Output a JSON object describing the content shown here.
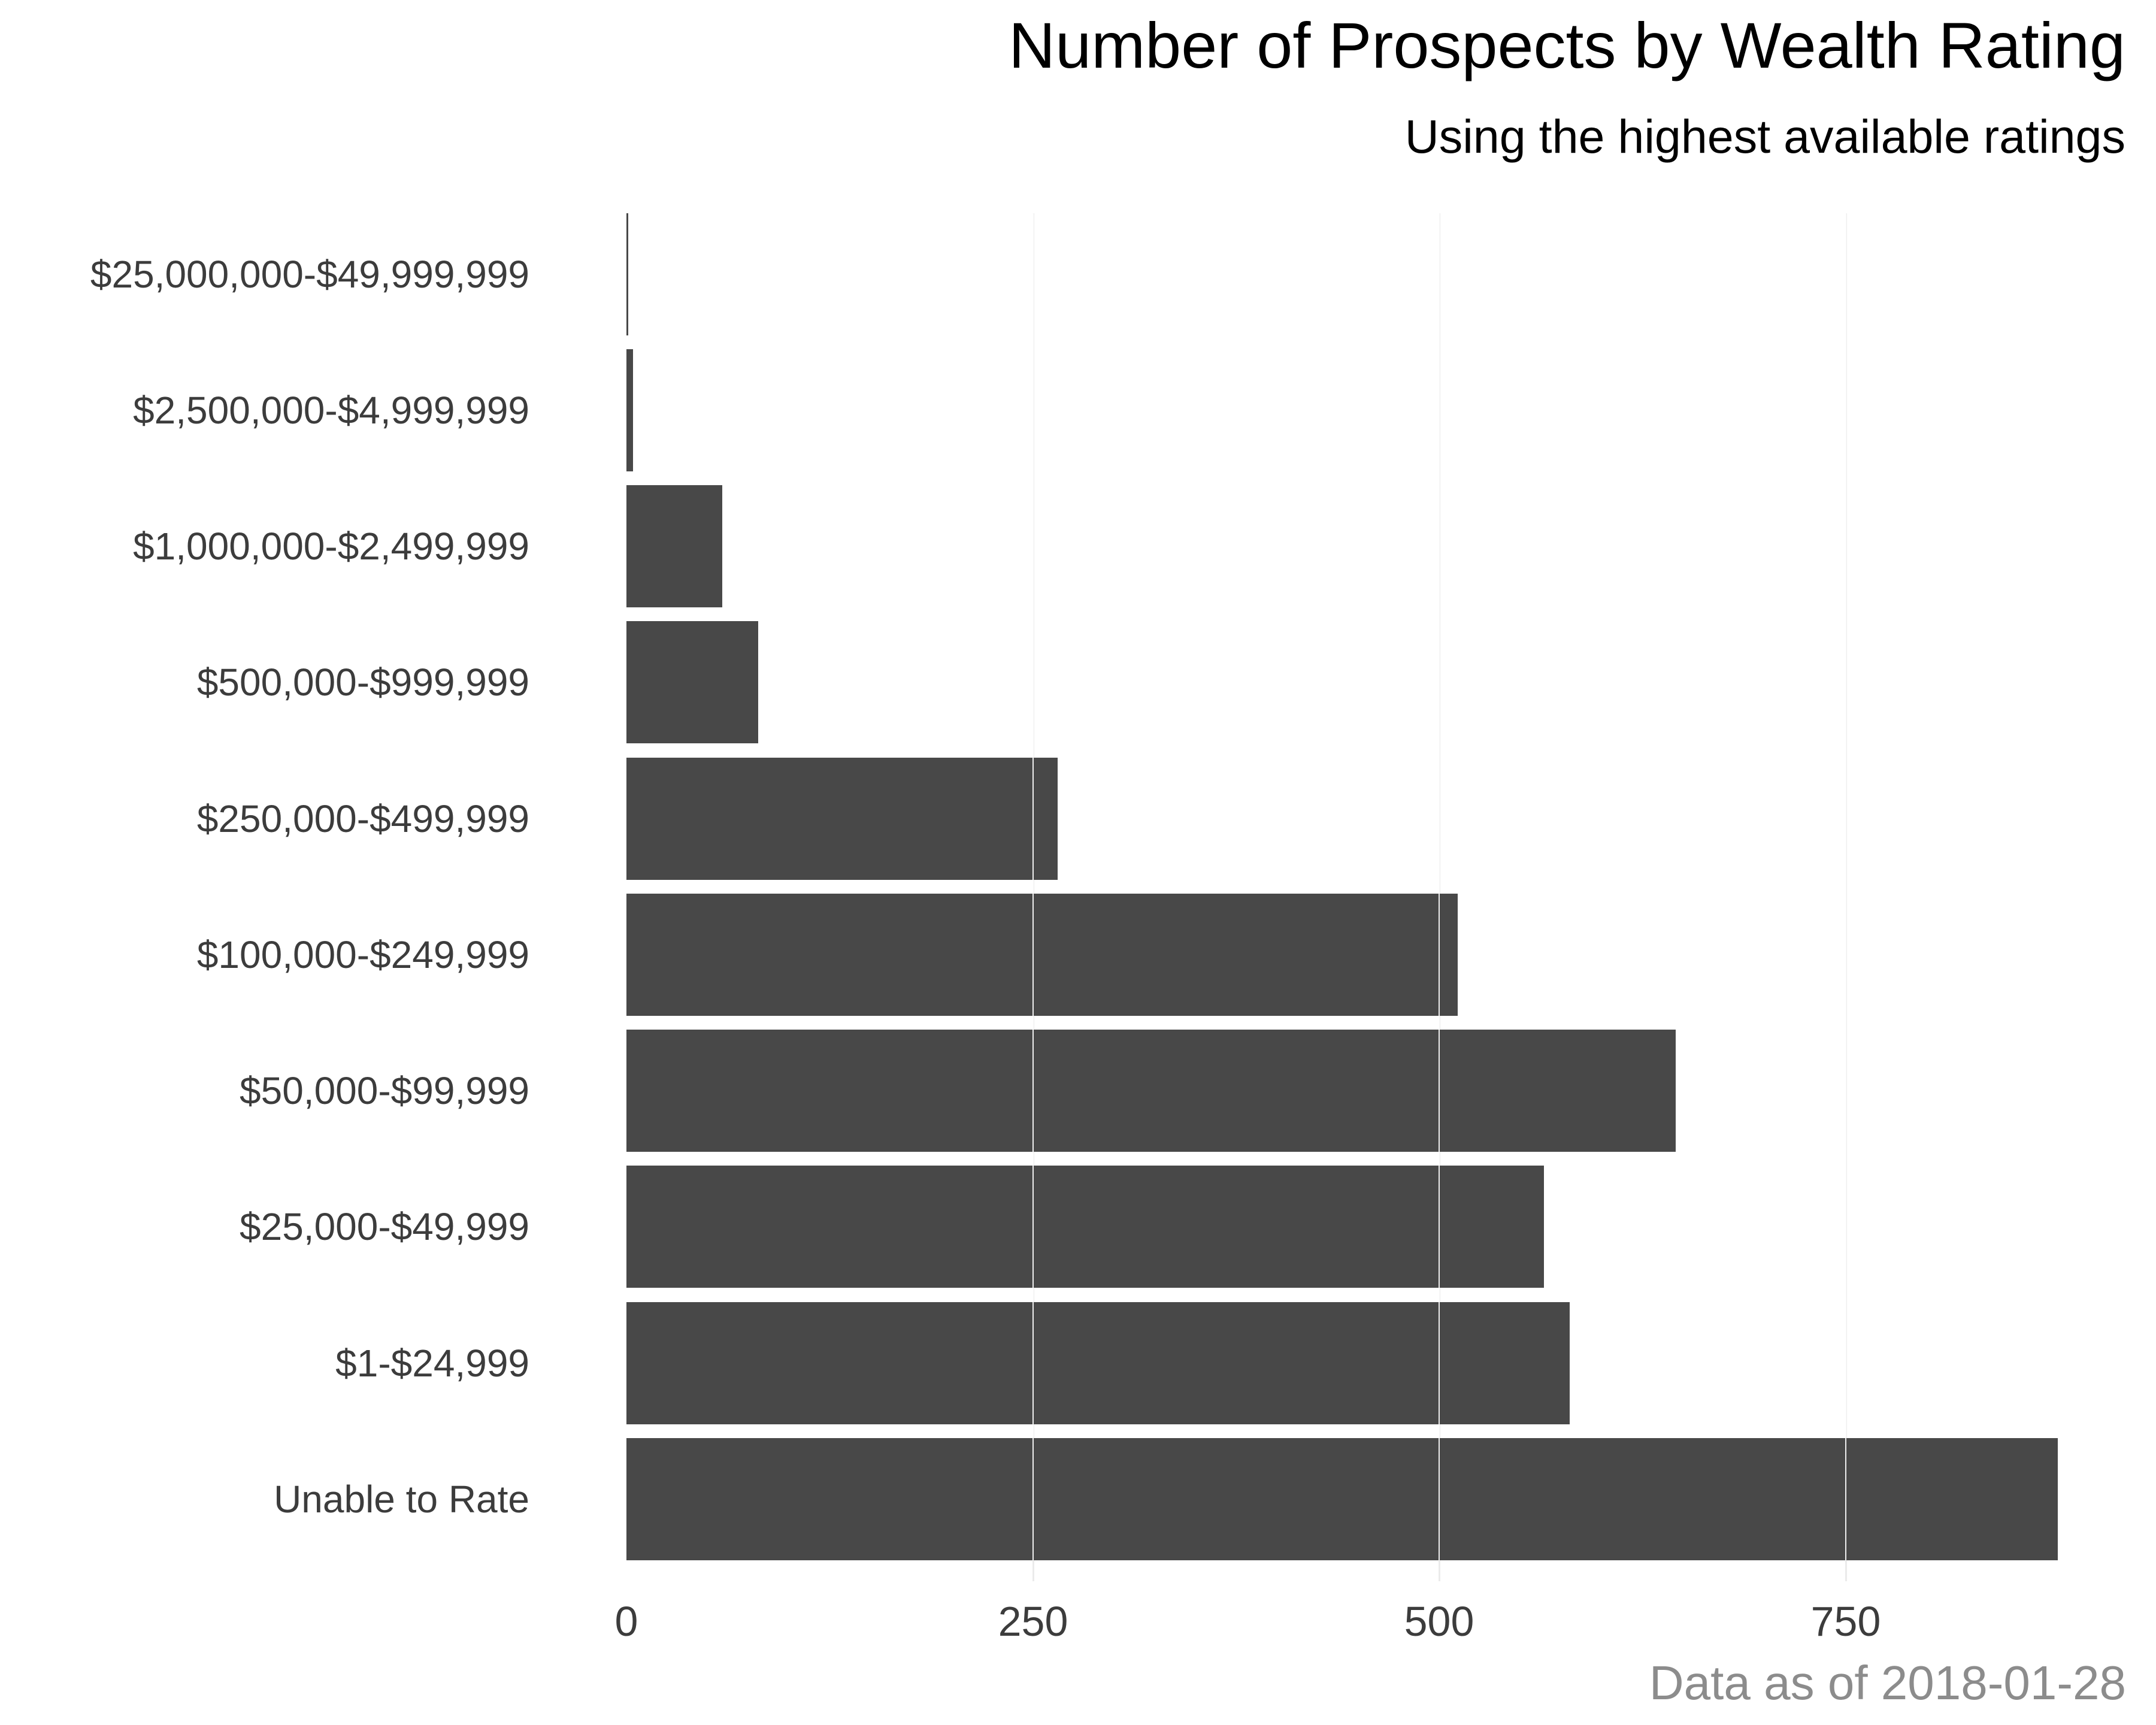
{
  "header": {
    "title": "Number of Prospects by Wealth Rating",
    "subtitle": "Using the highest available ratings"
  },
  "footer": {
    "caption": "Data as of 2018-01-28"
  },
  "axis": {
    "x_ticks": [
      "0",
      "250",
      "500",
      "750"
    ]
  },
  "colors": {
    "bar": "#484848",
    "grid": "#ebebeb",
    "caption": "#8c8c8c",
    "axis_text": "#3c3c3c"
  },
  "categories": [
    "$25,000,000-$49,999,999",
    "$2,500,000-$4,999,999",
    "$1,000,000-$2,499,999",
    "$500,000-$999,999",
    "$250,000-$499,999",
    "$100,000-$249,999",
    "$50,000-$99,999",
    "$25,000-$49,999",
    "$1-$24,999",
    "Unable to Rate"
  ],
  "chart_data": {
    "type": "bar",
    "orientation": "horizontal",
    "title": "Number of Prospects by Wealth Rating",
    "subtitle": "Using the highest available ratings",
    "caption": "Data as of 2018-01-28",
    "categories": [
      "$25,000,000-$49,999,999",
      "$2,500,000-$4,999,999",
      "$1,000,000-$2,499,999",
      "$500,000-$999,999",
      "$250,000-$499,999",
      "$100,000-$249,999",
      "$50,000-$99,999",
      "$25,000-$49,999",
      "$1-$24,999",
      "Unable to Rate"
    ],
    "values": [
      1,
      4,
      59,
      81,
      265,
      511,
      645,
      564,
      580,
      880
    ],
    "xlabel": "",
    "ylabel": "",
    "x_ticks": [
      0,
      250,
      500,
      750
    ],
    "xlim": [
      0,
      900
    ],
    "grid": "vertical major gridlines",
    "legend": "none"
  }
}
